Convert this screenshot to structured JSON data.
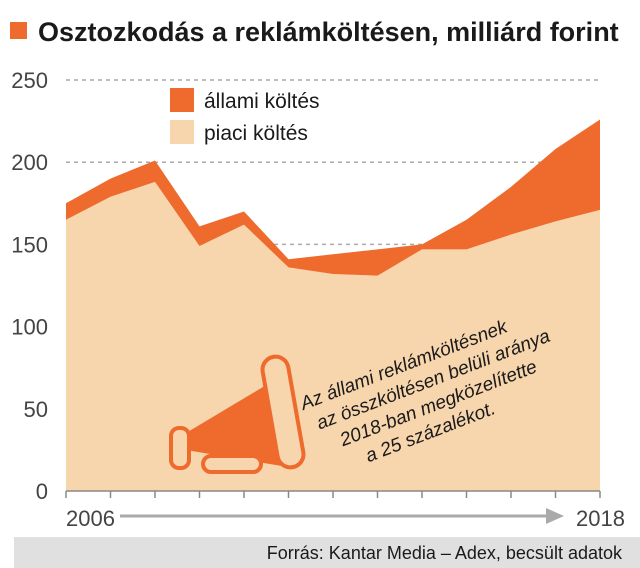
{
  "chart_data": {
    "type": "area",
    "title": "Osztozkodás a reklámköltésen, milliárd forint",
    "x": [
      2006,
      2007,
      2008,
      2009,
      2010,
      2011,
      2012,
      2013,
      2014,
      2015,
      2016,
      2017,
      2018
    ],
    "x_tick_labels": [
      "2006",
      "2018"
    ],
    "yticks": [
      0,
      50,
      100,
      150,
      200,
      250
    ],
    "ylim": [
      0,
      250
    ],
    "stacked": true,
    "series": [
      {
        "name": "piaci költés",
        "color": "#f7d5ad",
        "values": [
          165,
          179,
          188,
          149,
          162,
          136,
          132,
          131,
          147,
          147,
          156,
          164,
          171
        ]
      },
      {
        "name": "állami költés",
        "color": "#ef6a2d",
        "values": [
          10,
          11,
          13,
          12,
          8,
          5,
          12,
          16,
          3,
          18,
          29,
          44,
          55
        ]
      }
    ],
    "legend_position": "top-left",
    "annotation": [
      "Az állami reklámköltésnek",
      "az összköltésen belüli aránya",
      "2018-ban megközelítette",
      "a 25 százalékot."
    ],
    "source": "Forrás: Kantar Media – Adex, becsült adatok",
    "grid": true
  },
  "colors": {
    "accent": "#ef6a2d",
    "fill": "#f7d5ad",
    "footer_bg": "#e0e0e0",
    "grid": "#aaaaaa"
  },
  "icons": {
    "title_marker": "orange-square",
    "illustration": "megaphone-icon"
  }
}
